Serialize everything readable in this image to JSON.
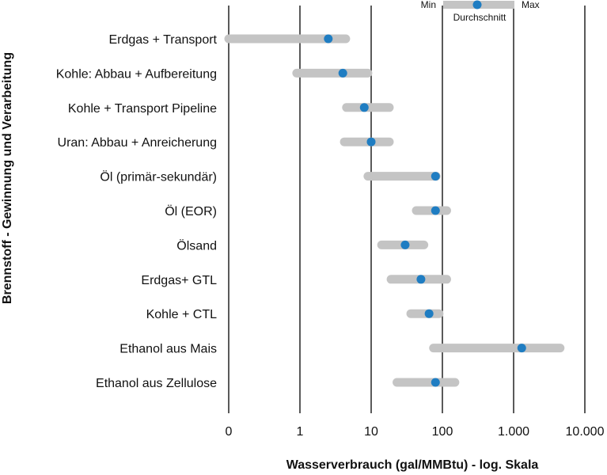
{
  "chart_data": {
    "type": "range",
    "xscale": "log",
    "xlabel": "Wasserverbrauch (gal/MMBtu) - log. Skala",
    "ylabel": "Brennstoff - Gewinnung und Verarbeitung",
    "xticks": [
      {
        "value": 0.1,
        "label": "0"
      },
      {
        "value": 1,
        "label": "1"
      },
      {
        "value": 10,
        "label": "10"
      },
      {
        "value": 100,
        "label": "100"
      },
      {
        "value": 1000,
        "label": "1.000"
      },
      {
        "value": 10000,
        "label": "10.000"
      }
    ],
    "xlim": [
      0.1,
      10000
    ],
    "grid": "vertical",
    "legend": {
      "position": "top-right",
      "min_label": "Min",
      "max_label": "Max",
      "mean_label": "Durchschnitt"
    },
    "colors": {
      "range": "#c4c4c4",
      "mean": "#1f7dc2",
      "grid": "#000000"
    },
    "categories": [
      "Erdgas + Transport",
      "Kohle: Abbau + Aufbereitung",
      "Kohle + Transport Pipeline",
      "Uran: Abbau + Anreicherung",
      "Öl (primär-sekundär)",
      "Öl (EOR)",
      "Ölsand",
      "Erdgas+ GTL",
      "Kohle + CTL",
      "Ethanol aus Mais",
      "Ethanol aus Zellulose"
    ],
    "min": [
      0.1,
      0.9,
      4.5,
      4.2,
      9,
      43,
      14,
      19,
      36,
      75,
      23
    ],
    "mean": [
      2.5,
      4,
      8,
      10,
      80,
      80,
      30,
      50,
      65,
      1300,
      80
    ],
    "max": [
      4.4,
      9,
      18,
      18,
      82,
      115,
      55,
      115,
      90,
      4500,
      150
    ]
  }
}
